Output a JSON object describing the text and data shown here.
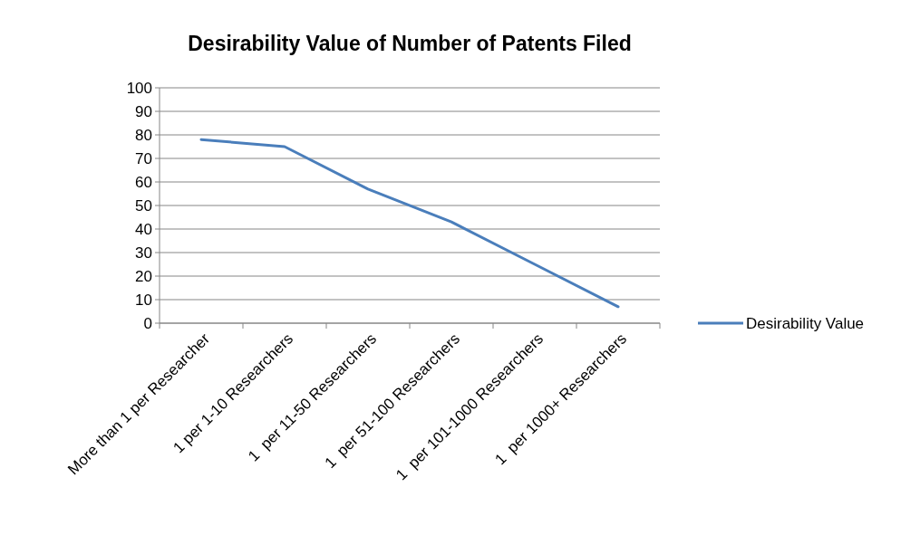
{
  "chart_data": {
    "type": "line",
    "title": "Desirability Value of Number of Patents Filed",
    "categories": [
      "More than 1 per Researcher",
      "1 per 1-10 Researchers",
      "1  per 11-50 Researchers",
      "1  per 51-100 Researchers",
      "1  per 101-1000 Researchers",
      "1  per 1000+ Researchers"
    ],
    "series": [
      {
        "name": "Desirability Value",
        "color": "#4a7ebb",
        "values": [
          78,
          75,
          57,
          43,
          25,
          7
        ]
      }
    ],
    "ylim": [
      0,
      100
    ],
    "yticks": [
      0,
      10,
      20,
      30,
      40,
      50,
      60,
      70,
      80,
      90,
      100
    ],
    "grid": "y",
    "legend": "right",
    "marker": "none",
    "line_style": "solid"
  }
}
